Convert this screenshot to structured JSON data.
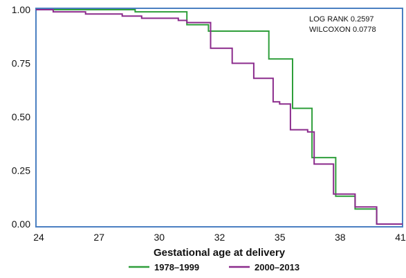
{
  "chart_data": {
    "type": "line",
    "step": true,
    "title": "",
    "xlabel": "Gestational age at delivery",
    "ylabel": "",
    "xlim": [
      24,
      41
    ],
    "ylim": [
      0,
      1
    ],
    "x_ticks": [
      24,
      27,
      30,
      32,
      35,
      38,
      41
    ],
    "y_ticks": [
      "1.00",
      "0.75",
      "0.50",
      "0.25",
      "0.00"
    ],
    "annotations": [
      "LOG RANK 0.2597",
      "WILCOXON 0.0778"
    ],
    "legend_position": "bottom",
    "series": [
      {
        "name": "1978–1999",
        "color": "#2e9e3a",
        "points": [
          [
            24,
            1.0
          ],
          [
            28.6,
            1.0
          ],
          [
            28.6,
            0.99
          ],
          [
            31,
            0.99
          ],
          [
            31,
            0.93
          ],
          [
            32,
            0.93
          ],
          [
            32,
            0.9
          ],
          [
            34.8,
            0.9
          ],
          [
            34.8,
            0.77
          ],
          [
            35.9,
            0.77
          ],
          [
            35.9,
            0.54
          ],
          [
            36.8,
            0.54
          ],
          [
            36.8,
            0.31
          ],
          [
            37.9,
            0.31
          ],
          [
            37.9,
            0.13
          ],
          [
            38.8,
            0.13
          ],
          [
            38.8,
            0.07
          ],
          [
            39.8,
            0.07
          ],
          [
            39.8,
            0.0
          ],
          [
            41,
            0.0
          ]
        ]
      },
      {
        "name": "2000–2013",
        "color": "#8b2b8c",
        "points": [
          [
            24,
            1.0
          ],
          [
            24.8,
            1.0
          ],
          [
            24.8,
            0.99
          ],
          [
            26.3,
            0.99
          ],
          [
            26.3,
            0.98
          ],
          [
            28,
            0.98
          ],
          [
            28,
            0.97
          ],
          [
            28.9,
            0.97
          ],
          [
            28.9,
            0.96
          ],
          [
            30.6,
            0.96
          ],
          [
            30.6,
            0.95
          ],
          [
            31,
            0.95
          ],
          [
            31,
            0.94
          ],
          [
            32.1,
            0.94
          ],
          [
            32.1,
            0.82
          ],
          [
            33.1,
            0.82
          ],
          [
            33.1,
            0.75
          ],
          [
            34.1,
            0.75
          ],
          [
            34.1,
            0.68
          ],
          [
            35,
            0.68
          ],
          [
            35,
            0.57
          ],
          [
            35.3,
            0.57
          ],
          [
            35.3,
            0.56
          ],
          [
            35.8,
            0.56
          ],
          [
            35.8,
            0.44
          ],
          [
            36.6,
            0.44
          ],
          [
            36.6,
            0.43
          ],
          [
            36.9,
            0.43
          ],
          [
            36.9,
            0.28
          ],
          [
            37.8,
            0.28
          ],
          [
            37.8,
            0.14
          ],
          [
            38.8,
            0.14
          ],
          [
            38.8,
            0.08
          ],
          [
            39.8,
            0.08
          ],
          [
            39.8,
            0.0
          ],
          [
            41,
            0.0
          ]
        ]
      }
    ]
  }
}
